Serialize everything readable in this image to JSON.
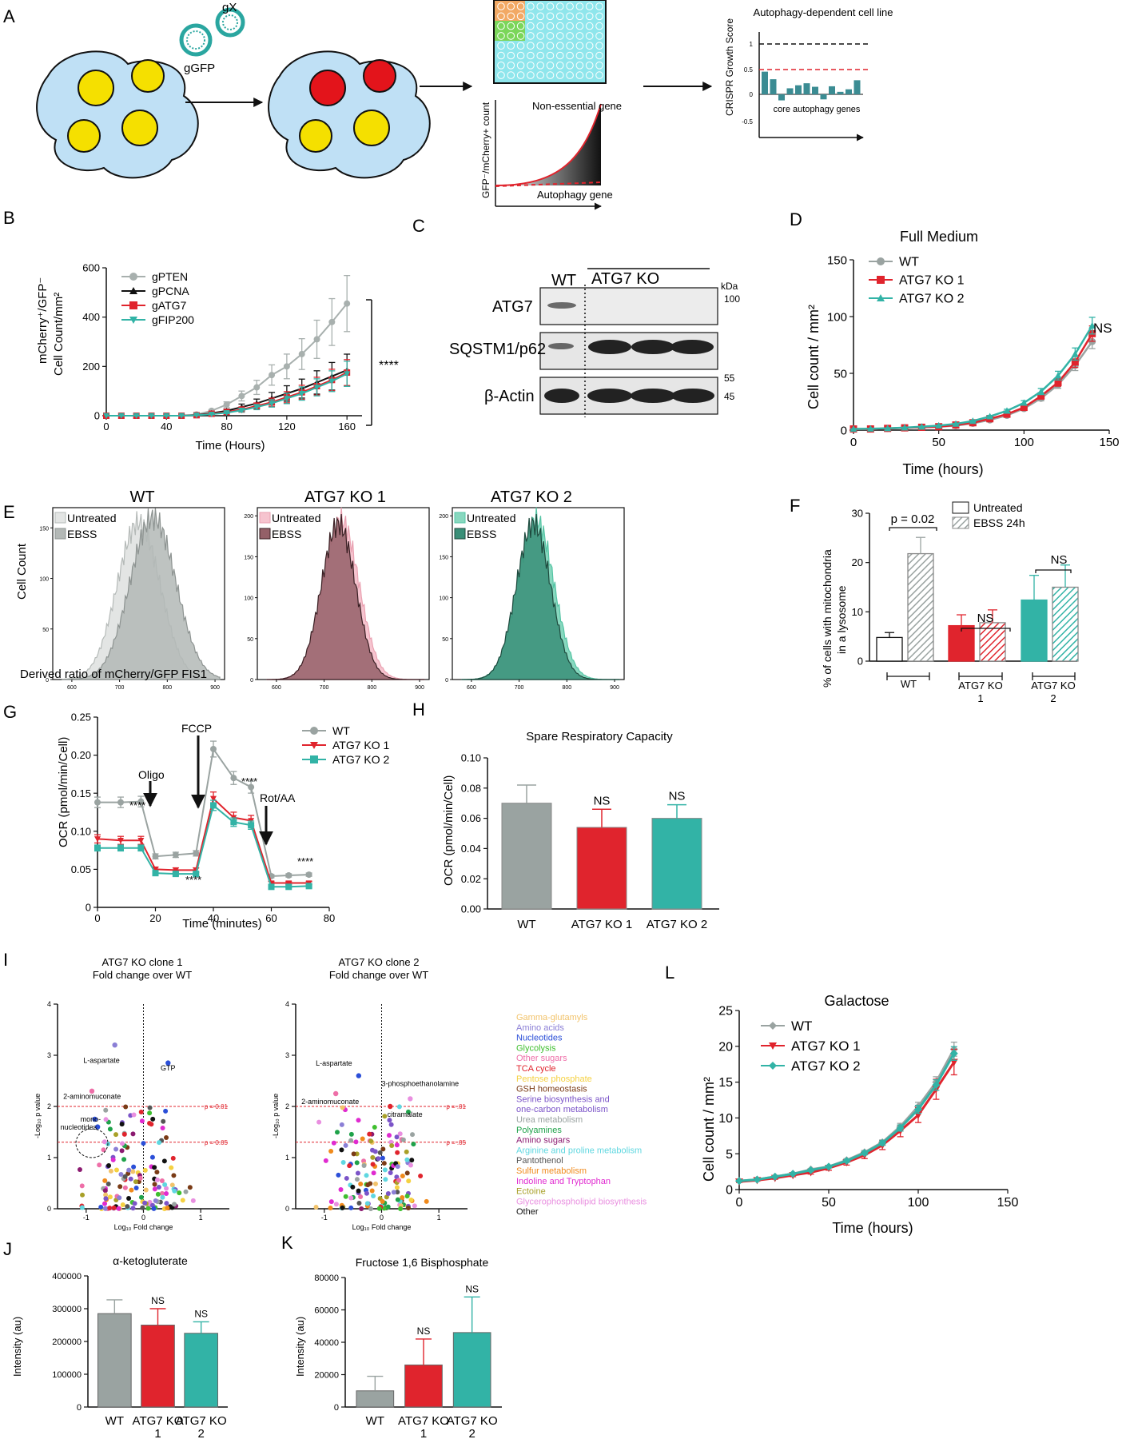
{
  "colors": {
    "wt": "#9aa3a1",
    "ko1": "#e0242d",
    "ko2": "#32b3a6",
    "black": "#111111",
    "grid": "#888888"
  },
  "panel_letters": {
    "a": "A",
    "b": "B",
    "c": "C",
    "d": "D",
    "e": "E",
    "f": "F",
    "g": "G",
    "h": "H",
    "i": "I",
    "j": "J",
    "k": "K",
    "l": "L"
  },
  "panelA": {
    "guides": [
      "gGFP",
      "gX"
    ],
    "y_label": "GFP⁻/mCherry+ count",
    "nonessential": "Non-essential gene",
    "autophagy": "Autophagy gene",
    "growth_title": "Autophagy-dependent cell line",
    "growth_ylabel": "CRISPR Growth Score",
    "growth_ticks": [
      "1",
      "0.5",
      "0",
      "-0.5"
    ],
    "growth_xlabel": "core autophagy genes",
    "growth_bars": [
      0.45,
      0.3,
      -0.12,
      0.12,
      0.18,
      0.22,
      0.15,
      -0.1,
      0.16,
      0.05,
      0.1,
      0.28
    ]
  },
  "panelB": {
    "ylabel1": "mCherry⁺/GFP⁻",
    "ylabel2": "Cell Count/mm²",
    "xlabel": "Time (Hours)",
    "sig": "****",
    "chart_data": {
      "type": "line",
      "x": [
        0,
        10,
        20,
        30,
        40,
        50,
        60,
        70,
        80,
        90,
        100,
        110,
        120,
        130,
        140,
        150,
        160
      ],
      "series": [
        {
          "name": "gPTEN",
          "values": [
            0,
            0,
            0,
            0,
            0,
            0,
            5,
            20,
            45,
            80,
            115,
            165,
            200,
            250,
            310,
            380,
            455
          ]
        },
        {
          "name": "gPCNA",
          "values": [
            0,
            0,
            0,
            0,
            0,
            0,
            3,
            10,
            20,
            35,
            50,
            70,
            90,
            110,
            135,
            160,
            185
          ]
        },
        {
          "name": "gATG7",
          "values": [
            0,
            0,
            0,
            0,
            0,
            0,
            2,
            8,
            15,
            25,
            40,
            55,
            75,
            95,
            120,
            145,
            175
          ]
        },
        {
          "name": "gFIP200",
          "values": [
            0,
            0,
            0,
            0,
            0,
            0,
            2,
            6,
            12,
            22,
            35,
            50,
            70,
            90,
            115,
            140,
            170
          ]
        }
      ],
      "xticks": [
        "0",
        "40",
        "80",
        "120",
        "160"
      ],
      "yticks": [
        "0",
        "200",
        "400",
        "600"
      ],
      "ylim": [
        0,
        600
      ],
      "xlim": [
        0,
        170
      ]
    }
  },
  "panelC": {
    "header_wt": "WT",
    "header_ko": "ATG7 KO",
    "kda": "kDa",
    "rows": [
      "ATG7",
      "SQSTM1/p62",
      "β-Actin"
    ],
    "mw": [
      "100",
      "55",
      "45"
    ]
  },
  "panelD": {
    "title": "Full Medium",
    "ylabel": "Cell count / mm²",
    "xlabel": "Time (hours)",
    "ns": "NS",
    "chart_data": {
      "type": "line",
      "x": [
        0,
        10,
        20,
        30,
        40,
        50,
        60,
        70,
        80,
        90,
        100,
        110,
        120,
        130,
        140
      ],
      "series": [
        {
          "name": "WT",
          "values": [
            1,
            1,
            1.5,
            2,
            2.5,
            3,
            4,
            6,
            9,
            13,
            19,
            28,
            40,
            57,
            78
          ]
        },
        {
          "name": "ATG7 KO 1",
          "values": [
            1,
            1,
            1.5,
            2,
            2.5,
            3,
            4.5,
            6.5,
            10,
            14,
            20,
            30,
            42,
            60,
            85
          ]
        },
        {
          "name": "ATG7 KO 2",
          "values": [
            1,
            1.2,
            1.6,
            2.2,
            3,
            4,
            5.5,
            8,
            12,
            17,
            24,
            34,
            48,
            67,
            92
          ]
        }
      ],
      "xticks": [
        "0",
        "50",
        "100",
        "150"
      ],
      "yticks": [
        "0",
        "50",
        "100",
        "150"
      ],
      "ylim": [
        0,
        150
      ],
      "xlim": [
        0,
        150
      ]
    }
  },
  "panelE": {
    "titles": [
      "WT",
      "ATG7 KO 1",
      "ATG7 KO 2"
    ],
    "legend": [
      "Untreated",
      "EBSS"
    ],
    "ylabel": "Cell Count",
    "xlabel": "Derived ratio of mCherry/GFP FIS1",
    "xticks": [
      "600",
      "700",
      "800",
      "900"
    ],
    "yticks1": [
      "0",
      "50",
      "100",
      "150"
    ],
    "yticks2": [
      "0",
      "50",
      "100",
      "150",
      "200"
    ]
  },
  "panelF": {
    "ylabel1": "% of cells with mitochondria",
    "ylabel2": "in a lysosome",
    "legend": [
      "Untreated",
      "EBSS 24h"
    ],
    "pval": "p = 0.02",
    "ns": "NS",
    "groups": [
      "WT",
      "ATG7 KO",
      "1",
      "ATG7 KO",
      "2"
    ],
    "chart_data": {
      "type": "bar",
      "categories": [
        "WT",
        "ATG7 KO 1",
        "ATG7 KO 2"
      ],
      "series": [
        {
          "name": "Untreated",
          "values": [
            4.8,
            7.2,
            12.4
          ]
        },
        {
          "name": "EBSS 24h",
          "values": [
            21.8,
            7.8,
            15.0
          ]
        }
      ],
      "yticks": [
        "0",
        "10",
        "20",
        "30"
      ],
      "ylim": [
        0,
        30
      ]
    }
  },
  "panelG": {
    "ylabel": "OCR (pmol/min/Cell)",
    "xlabel": "Time (minutes)",
    "oligo": "Oligo",
    "fccp": "FCCP",
    "rot": "Rot/AA",
    "sig": "****",
    "chart_data": {
      "type": "line",
      "x": [
        0,
        8,
        15,
        20,
        27,
        34,
        40,
        47,
        53,
        60,
        66,
        73
      ],
      "series": [
        {
          "name": "WT",
          "values": [
            0.138,
            0.138,
            0.139,
            0.067,
            0.069,
            0.071,
            0.208,
            0.17,
            0.158,
            0.041,
            0.042,
            0.043
          ]
        },
        {
          "name": "ATG7 KO 1",
          "values": [
            0.09,
            0.088,
            0.088,
            0.05,
            0.049,
            0.049,
            0.143,
            0.118,
            0.114,
            0.032,
            0.032,
            0.032
          ]
        },
        {
          "name": "ATG7 KO 2",
          "values": [
            0.078,
            0.078,
            0.078,
            0.045,
            0.044,
            0.044,
            0.134,
            0.112,
            0.108,
            0.027,
            0.027,
            0.028
          ]
        }
      ],
      "xticks": [
        "0",
        "20",
        "40",
        "60",
        "80"
      ],
      "yticks": [
        "0",
        "0.05",
        "0.10",
        "0.15",
        "0.20",
        "0.25"
      ],
      "ylim": [
        0,
        0.25
      ],
      "xlim": [
        0,
        80
      ]
    }
  },
  "panelH": {
    "title": "Spare Respiratory Capacity",
    "ylabel": "OCR (pmol/min/Cell)",
    "ns": "NS",
    "chart_data": {
      "type": "bar",
      "categories": [
        "WT",
        "ATG7 KO 1",
        "ATG7 KO 2"
      ],
      "values": [
        0.07,
        0.054,
        0.06
      ],
      "errors": [
        0.012,
        0.012,
        0.009
      ],
      "yticks": [
        "0.00",
        "0.02",
        "0.04",
        "0.06",
        "0.08",
        "0.10"
      ],
      "ylim": [
        0,
        0.1
      ]
    }
  },
  "panelI": {
    "title1a": "ATG7 KO clone 1",
    "title1b": "Fold change over WT",
    "title2a": "ATG7 KO clone 2",
    "title2b": "Fold change over WT",
    "ylabel": "-Log₁₀ p value",
    "xlabel": "Log₁₀ Fold change",
    "p01a": "p = 0.01",
    "p05a": "p = 0.05",
    "p01b": "p = .01",
    "p05b": "p = .05",
    "ann1": [
      "L-aspartate",
      "GTP",
      "2-aminomuconate",
      "mono-",
      "nucleotides"
    ],
    "ann2": [
      "L-aspartate",
      "3-phosphoethanolamine",
      "2-aminomuconate",
      "citramalate"
    ],
    "xticks": [
      "-1",
      "0",
      "1"
    ],
    "yticks": [
      "0",
      "1",
      "2",
      "3",
      "4"
    ],
    "legend": [
      {
        "label": "Gamma-glutamyls",
        "color": "#f2c36b"
      },
      {
        "label": "Amino acids",
        "color": "#8b7fd6"
      },
      {
        "label": "Nucleotides",
        "color": "#2b4fd8"
      },
      {
        "label": "Glycolysis",
        "color": "#3fbf2f"
      },
      {
        "label": "Other sugars",
        "color": "#ee6fa8"
      },
      {
        "label": "TCA cycle",
        "color": "#e0242d"
      },
      {
        "label": "Pentose phosphate",
        "color": "#f5d142"
      },
      {
        "label": "GSH homeostasis",
        "color": "#7a3b16"
      },
      {
        "label": "Serine biosynthesis and",
        "color": "#7b54c8"
      },
      {
        "label": "one-carbon metabolism",
        "color": "#7b54c8"
      },
      {
        "label": "Urea metabolism",
        "color": "#9aa3a1"
      },
      {
        "label": "Polyamines",
        "color": "#1fa24a"
      },
      {
        "label": "Amino sugars",
        "color": "#8b1a70"
      },
      {
        "label": "Arginine and proline metabolism",
        "color": "#5fd7e0"
      },
      {
        "label": "Pantothenol",
        "color": "#555555"
      },
      {
        "label": "Sulfur metabolism",
        "color": "#f08a1c"
      },
      {
        "label": "Indoline and Tryptophan",
        "color": "#e02bd0"
      },
      {
        "label": "Ectoine",
        "color": "#a8a028"
      },
      {
        "label": "Glycerophospholipid biosynthesis",
        "color": "#e98fe0"
      },
      {
        "label": "Other",
        "color": "#111111"
      }
    ]
  },
  "panelJ": {
    "title": "α-ketogluterate",
    "ylabel": "Intensity (au)",
    "ns": "NS",
    "groups": [
      "WT",
      "ATG7 KO",
      "1",
      "ATG7 KO",
      "2"
    ],
    "chart_data": {
      "type": "bar",
      "categories": [
        "WT",
        "ATG7 KO 1",
        "ATG7 KO 2"
      ],
      "values": [
        285000,
        250000,
        225000
      ],
      "errors": [
        42000,
        50000,
        35000
      ],
      "yticks": [
        "0",
        "100000",
        "200000",
        "300000",
        "400000"
      ],
      "ylim": [
        0,
        400000
      ]
    }
  },
  "panelK": {
    "title": "Fructose 1,6 Bisphosphate",
    "ylabel": "Intensity (au)",
    "ns": "NS",
    "groups": [
      "WT",
      "ATG7 KO",
      "1",
      "ATG7 KO",
      "2"
    ],
    "chart_data": {
      "type": "bar",
      "categories": [
        "WT",
        "ATG7 KO 1",
        "ATG7 KO 2"
      ],
      "values": [
        10000,
        26000,
        46000
      ],
      "errors": [
        9000,
        16000,
        22000
      ],
      "yticks": [
        "0",
        "20000",
        "40000",
        "60000",
        "80000"
      ],
      "ylim": [
        0,
        80000
      ]
    }
  },
  "panelL": {
    "title": "Galactose",
    "ylabel": "Cell count / mm²",
    "xlabel": "Time (hours)",
    "chart_data": {
      "type": "line",
      "x": [
        0,
        10,
        20,
        30,
        40,
        50,
        60,
        70,
        80,
        90,
        100,
        110,
        120
      ],
      "series": [
        {
          "name": "WT",
          "values": [
            1.2,
            1.4,
            1.8,
            2.2,
            2.8,
            3.2,
            4.1,
            5.2,
            6.6,
            8.8,
            11.6,
            15.0,
            19.6
          ]
        },
        {
          "name": "ATG7 KO 1",
          "values": [
            1.1,
            1.3,
            1.6,
            2.0,
            2.4,
            3.0,
            3.8,
            4.8,
            6.2,
            8.2,
            10.4,
            14.0,
            17.8
          ]
        },
        {
          "name": "ATG7 KO 2",
          "values": [
            1.2,
            1.4,
            1.8,
            2.2,
            2.7,
            3.2,
            4.0,
            5.1,
            6.5,
            8.6,
            11.2,
            14.6,
            19.0
          ]
        }
      ],
      "xticks": [
        "0",
        "50",
        "100",
        "150"
      ],
      "yticks": [
        "0",
        "5",
        "10",
        "15",
        "20",
        "25"
      ],
      "ylim": [
        0,
        25
      ],
      "xlim": [
        0,
        150
      ]
    }
  }
}
